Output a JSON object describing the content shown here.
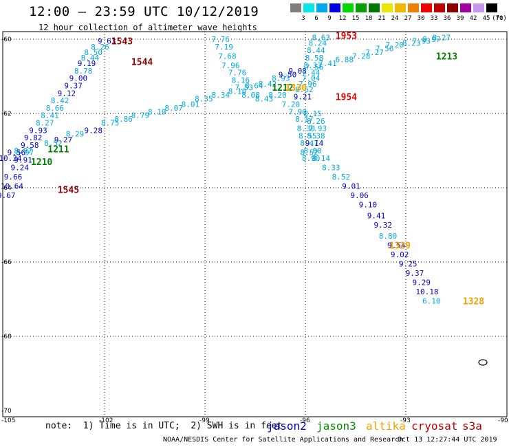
{
  "title": "12:00 – 23:59 UTC 10/12/2019",
  "subtitle": "12 hour collection of altimeter wave heights",
  "note": "note:  1) Time is in UTC;  2) SWH is in feet",
  "credit": "NOAA/NESDIS Center for Satellite Applications and Research",
  "timestamp": "Oct 13 12:27:44 UTC 2019",
  "colorbar": {
    "unit": "(ft)",
    "ticks": [
      "3",
      "6",
      "9",
      "12",
      "15",
      "18",
      "21",
      "24",
      "27",
      "30",
      "33",
      "36",
      "39",
      "42",
      "45",
      "70"
    ],
    "colors": [
      "#7f7f7f",
      "#00e8e8",
      "#00a8f0",
      "#0000e8",
      "#00d800",
      "#00a000",
      "#007800",
      "#e8e800",
      "#f0b800",
      "#f08000",
      "#f00000",
      "#c00000",
      "#8c0000",
      "#a000a0",
      "#c898f0",
      "#000000"
    ]
  },
  "legend": [
    {
      "name": "jason2",
      "color": "#0000c8"
    },
    {
      "name": "jason3",
      "color": "#009000"
    },
    {
      "name": "altika",
      "color": "#f0a000"
    },
    {
      "name": "cryosat",
      "color": "#c00000"
    },
    {
      "name": "s3a",
      "color": "#b00000"
    }
  ],
  "axes": {
    "lon_range": [
      -105,
      -90
    ],
    "lat_range": [
      -70,
      -60
    ],
    "lon_ticks": [
      "-105",
      "-102",
      "-99",
      "-96",
      "-93",
      "-90"
    ],
    "lat_ticks": [
      "-60",
      "-62",
      "-64",
      "-66",
      "-68",
      "-70"
    ],
    "grid": true
  },
  "chart_data": {
    "type": "scatter",
    "tracks": [
      {
        "label": "1543",
        "color": "#8b0000",
        "label_lon": -101.8,
        "label_lat": -60.05,
        "points": [
          [
            -102.0,
            -60.05,
            "9.63"
          ],
          [
            -102.2,
            -60.2,
            "8.26"
          ],
          [
            -102.4,
            -60.35,
            "8.50"
          ],
          [
            -102.5,
            -60.5,
            "8.44"
          ],
          [
            -102.6,
            -60.65,
            "9.19"
          ],
          [
            -102.7,
            -60.85,
            "8.78"
          ],
          [
            -102.85,
            -61.05,
            "9.00"
          ],
          [
            -103.0,
            -61.25,
            "9.37"
          ],
          [
            -103.2,
            -61.45,
            "9.12"
          ],
          [
            -103.4,
            -61.65,
            "8.42"
          ],
          [
            -103.55,
            -61.85,
            "8.66"
          ],
          [
            -103.7,
            -62.05,
            "8.41"
          ],
          [
            -103.85,
            -62.25,
            "8.27"
          ],
          [
            -104.05,
            -62.45,
            "9.93"
          ]
        ]
      },
      {
        "label": "1544",
        "color": "#8b0000",
        "label_lon": -101.2,
        "label_lat": -60.6,
        "points": []
      },
      {
        "label": "1545",
        "color": "#8b0000",
        "label_lon": -103.4,
        "label_lat": -64.05,
        "points": [
          [
            -104.2,
            -62.65,
            "9.82"
          ],
          [
            -104.3,
            -62.85,
            "9.58"
          ],
          [
            -104.45,
            -63.05,
            "8.97"
          ],
          [
            -104.5,
            -63.25,
            "9.91"
          ],
          [
            -104.6,
            -63.45,
            "9.24"
          ],
          [
            -104.8,
            -63.7,
            "9.66"
          ],
          [
            -104.9,
            -63.95,
            "10.64"
          ],
          [
            -105.0,
            -64.2,
            "9.67"
          ]
        ]
      },
      {
        "label": "1210",
        "color": "#008000",
        "label_lon": -104.2,
        "label_lat": -63.3,
        "points": [
          [
            -104.95,
            -63.2,
            "10.34"
          ],
          [
            -104.7,
            -63.05,
            "9.56"
          ],
          [
            -104.5,
            -63.0,
            "8.97"
          ]
        ]
      },
      {
        "label": "1211",
        "color": "#008000",
        "label_lon": -103.7,
        "label_lat": -62.95,
        "points": [
          [
            -103.6,
            -62.8,
            "8.52"
          ],
          [
            -103.3,
            -62.7,
            "9.27"
          ],
          [
            -102.95,
            -62.55,
            "8.29"
          ],
          [
            -102.4,
            -62.45,
            "9.28"
          ],
          [
            -101.9,
            -62.25,
            "8.75"
          ],
          [
            -101.5,
            -62.15,
            "8.86"
          ],
          [
            -101.0,
            -62.05,
            "8.79"
          ],
          [
            -100.5,
            -61.95,
            "8.19"
          ],
          [
            -100.0,
            -61.85,
            "8.07"
          ],
          [
            -99.5,
            -61.75,
            "8.01"
          ],
          [
            -99.1,
            -61.6,
            "8.35"
          ],
          [
            -98.6,
            -61.5,
            "8.34"
          ],
          [
            -98.1,
            -61.4,
            "8.10"
          ],
          [
            -97.6,
            -61.25,
            "8.64"
          ],
          [
            -97.2,
            -61.2,
            "8.42"
          ]
        ]
      },
      {
        "label": "1212",
        "color": "#008000",
        "label_lon": -97.0,
        "label_lat": -61.3,
        "points": [
          [
            -96.8,
            -61.05,
            "8.93"
          ],
          [
            -96.6,
            -60.95,
            "9.50"
          ],
          [
            -96.3,
            -60.85,
            "9.08"
          ]
        ]
      },
      {
        "label": "1213",
        "color": "#008000",
        "label_lon": -92.1,
        "label_lat": -60.45,
        "points": [
          [
            -95.8,
            -60.75,
            "7.56"
          ],
          [
            -95.4,
            -60.65,
            "7.41"
          ],
          [
            -94.9,
            -60.55,
            "6.88"
          ],
          [
            -94.4,
            -60.45,
            "7.28"
          ],
          [
            -94.0,
            -60.35,
            "7.27"
          ],
          [
            -93.7,
            -60.25,
            "7.56"
          ],
          [
            -93.4,
            -60.15,
            "7.20"
          ],
          [
            -92.9,
            -60.1,
            "8.23"
          ],
          [
            -92.6,
            -60.05,
            "7.93"
          ],
          [
            -92.3,
            -60.0,
            "8.97"
          ],
          [
            -92.0,
            -59.95,
            "8.27"
          ]
        ]
      },
      {
        "label": "1953",
        "color": "#e00000",
        "label_lon": -95.1,
        "label_lat": -59.9,
        "points": [
          [
            -95.6,
            -59.95,
            "8.63"
          ],
          [
            -95.7,
            -60.1,
            "8.24"
          ],
          [
            -95.75,
            -60.3,
            "8.44"
          ],
          [
            -95.8,
            -60.5,
            "8.58"
          ],
          [
            -95.85,
            -60.7,
            "8.33"
          ],
          [
            -95.9,
            -60.9,
            "7.44"
          ],
          [
            -95.9,
            -61.05,
            "7.04"
          ],
          [
            -96.0,
            -61.2,
            "7.96"
          ],
          [
            -96.1,
            -61.35,
            "8.62"
          ],
          [
            -96.15,
            -61.55,
            "9.21"
          ]
        ]
      },
      {
        "label": "1954",
        "color": "#e00000",
        "label_lon": -95.1,
        "label_lat": -61.55,
        "points": []
      },
      {
        "label": "1330",
        "color": "#f0a000",
        "label_lon": -96.6,
        "label_lat": -61.3,
        "points": [
          [
            -98.6,
            -60.0,
            "7.76"
          ],
          [
            -98.5,
            -60.2,
            "7.19"
          ],
          [
            -98.4,
            -60.45,
            "7.68"
          ],
          [
            -98.3,
            -60.7,
            "7.96"
          ],
          [
            -98.1,
            -60.9,
            "7.76"
          ],
          [
            -98.0,
            -61.1,
            "8.16"
          ],
          [
            -97.9,
            -61.3,
            "7.53"
          ],
          [
            -97.7,
            -61.5,
            "8.08"
          ],
          [
            -97.3,
            -61.6,
            "8.43"
          ],
          [
            -96.9,
            -61.5,
            "8.20"
          ],
          [
            -96.5,
            -61.75,
            "7.20"
          ],
          [
            -96.3,
            -61.95,
            "7.90"
          ],
          [
            -96.1,
            -62.15,
            "8.17"
          ],
          [
            -96.05,
            -62.4,
            "8.30"
          ],
          [
            -96.0,
            -62.6,
            "8.55"
          ],
          [
            -95.95,
            -62.8,
            "8.47"
          ],
          [
            -95.95,
            -63.05,
            "8.52"
          ],
          [
            -95.9,
            -63.2,
            "8.90"
          ]
        ]
      },
      {
        "label": "1329",
        "color": "#f0a000",
        "label_lon": -93.5,
        "label_lat": -65.55,
        "points": [
          [
            -95.85,
            -62.0,
            "8.15"
          ],
          [
            -95.75,
            -62.2,
            "8.26"
          ],
          [
            -95.7,
            -62.4,
            "7.93"
          ],
          [
            -95.75,
            -62.6,
            "8.38"
          ],
          [
            -95.8,
            -62.8,
            "9.14"
          ],
          [
            -95.85,
            -63.0,
            "8.00"
          ],
          [
            -95.6,
            -63.2,
            "8.14"
          ],
          [
            -95.3,
            -63.45,
            "8.33"
          ],
          [
            -95.0,
            -63.7,
            "8.52"
          ],
          [
            -94.7,
            -63.95,
            "9.01"
          ],
          [
            -94.45,
            -64.2,
            "9.06"
          ],
          [
            -94.2,
            -64.45,
            "9.10"
          ],
          [
            -93.95,
            -64.75,
            "9.41"
          ],
          [
            -93.75,
            -65.0,
            "9.32"
          ],
          [
            -93.6,
            -65.3,
            "8.80"
          ],
          [
            -93.35,
            -65.55,
            "9.54"
          ],
          [
            -93.25,
            -65.8,
            "9.02"
          ],
          [
            -93.0,
            -66.05,
            "9.25"
          ],
          [
            -92.8,
            -66.3,
            "9.37"
          ],
          [
            -92.6,
            -66.55,
            "9.29"
          ],
          [
            -92.5,
            -66.8,
            "10.18"
          ],
          [
            -92.3,
            -67.05,
            "6.10"
          ]
        ]
      },
      {
        "label": "1328",
        "color": "#f0a000",
        "label_lon": -91.3,
        "label_lat": -67.05,
        "points": []
      }
    ]
  }
}
